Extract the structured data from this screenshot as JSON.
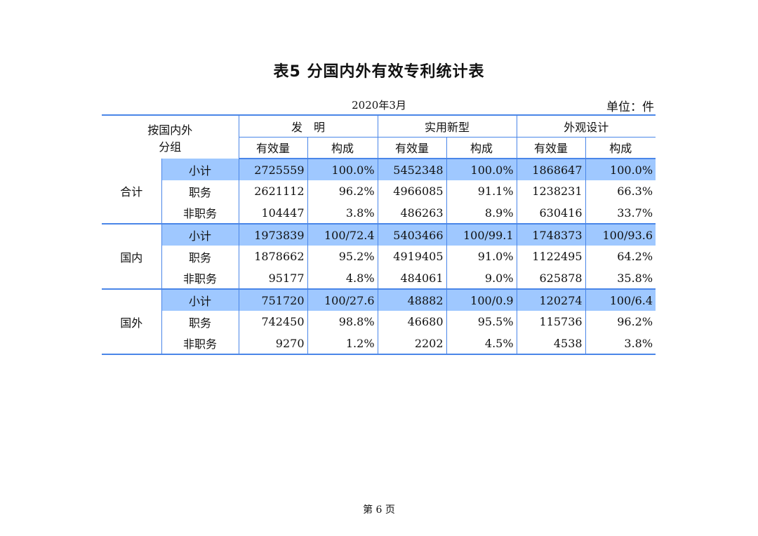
{
  "title": "表5  分国内外有效专利统计表",
  "date": "2020年3月",
  "unit": "单位：件",
  "header": {
    "group_label_line1": "按国内外",
    "group_label_line2": "分组",
    "categories": [
      "发　明",
      "实用新型",
      "外观设计"
    ],
    "sub_headers": [
      "有效量",
      "构成",
      "有效量",
      "构成",
      "有效量",
      "构成"
    ]
  },
  "groups": [
    {
      "name": "合计",
      "rows": [
        {
          "label": "小计",
          "values": [
            "2725559",
            "100.0%",
            "5452348",
            "100.0%",
            "1868647",
            "100.0%"
          ]
        },
        {
          "label": "职务",
          "values": [
            "2621112",
            "96.2%",
            "4966085",
            "91.1%",
            "1238231",
            "66.3%"
          ]
        },
        {
          "label": "非职务",
          "values": [
            "104447",
            "3.8%",
            "486263",
            "8.9%",
            "630416",
            "33.7%"
          ]
        }
      ]
    },
    {
      "name": "国内",
      "rows": [
        {
          "label": "小计",
          "values": [
            "1973839",
            "100/72.4",
            "5403466",
            "100/99.1",
            "1748373",
            "100/93.6"
          ]
        },
        {
          "label": "职务",
          "values": [
            "1878662",
            "95.2%",
            "4919405",
            "91.0%",
            "1122495",
            "64.2%"
          ]
        },
        {
          "label": "非职务",
          "values": [
            "95177",
            "4.8%",
            "484061",
            "9.0%",
            "625878",
            "35.8%"
          ]
        }
      ]
    },
    {
      "name": "国外",
      "rows": [
        {
          "label": "小计",
          "values": [
            "751720",
            "100/27.6",
            "48882",
            "100/0.9",
            "120274",
            "100/6.4"
          ]
        },
        {
          "label": "职务",
          "values": [
            "742450",
            "98.8%",
            "46680",
            "95.5%",
            "115736",
            "96.2%"
          ]
        },
        {
          "label": "非职务",
          "values": [
            "9270",
            "1.2%",
            "2202",
            "4.5%",
            "4538",
            "3.8%"
          ]
        }
      ]
    }
  ],
  "footer": {
    "page_label": "第 6 页"
  }
}
